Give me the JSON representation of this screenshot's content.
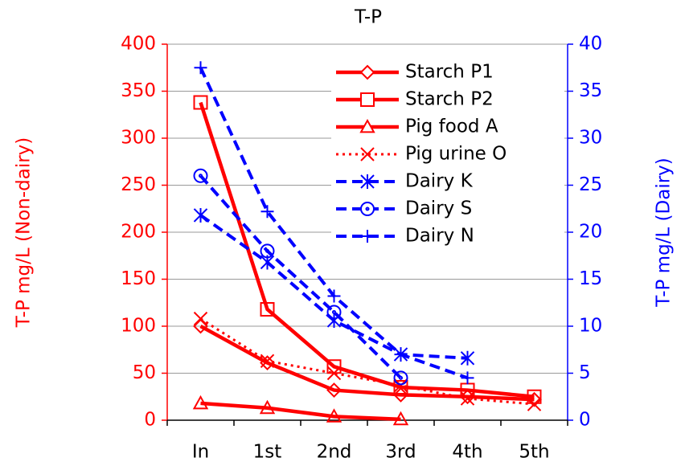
{
  "chart_data": {
    "type": "line",
    "title": "T-P",
    "y_label": "T-P  mg/L (Non-dairy)",
    "y2_label": "T-P  mg/L  (Dairy)",
    "categories": [
      "In",
      "1st",
      "2nd",
      "3rd",
      "4th",
      "5th"
    ],
    "ylim": [
      0,
      400
    ],
    "yticks": [
      0,
      50,
      100,
      150,
      200,
      250,
      300,
      350,
      400
    ],
    "y2lim": [
      0,
      40
    ],
    "y2ticks": [
      0,
      5,
      10,
      15,
      20,
      25,
      30,
      35,
      40
    ],
    "grid": true,
    "legend": "upper right",
    "series": [
      {
        "name": "Starch P1",
        "color": "#ff0000",
        "marker": "diamond",
        "dash": "solid",
        "values": [
          100,
          61,
          32,
          27,
          25,
          22
        ]
      },
      {
        "name": "Starch P2",
        "color": "#ff0000",
        "marker": "square",
        "dash": "solid",
        "values": [
          338,
          118,
          57,
          35,
          32,
          25
        ]
      },
      {
        "name": "Pig food A",
        "color": "#ff0000",
        "marker": "triangle",
        "dash": "solid",
        "values": [
          18,
          13,
          4,
          1,
          null,
          null
        ]
      },
      {
        "name": "Pig urine O",
        "color": "#ff0000",
        "marker": "x",
        "dash": "dotted",
        "values": [
          108,
          63,
          50,
          37,
          23,
          17
        ]
      },
      {
        "name": "Dairy K",
        "color": "#0000ff",
        "marker": "asterisk",
        "dash": "dashed",
        "axis": "y2",
        "values": [
          21.8,
          16.8,
          10.6,
          7,
          6.6,
          null
        ]
      },
      {
        "name": "Dairy S",
        "color": "#0000ff",
        "marker": "circle",
        "dash": "dashed",
        "axis": "y2",
        "values": [
          26,
          18,
          11.5,
          4.5,
          null,
          null
        ]
      },
      {
        "name": "Dairy N",
        "color": "#0000ff",
        "marker": "plus",
        "dash": "dashed",
        "axis": "y2",
        "values": [
          37.5,
          22.2,
          13.2,
          7,
          4.5,
          null
        ]
      }
    ]
  }
}
